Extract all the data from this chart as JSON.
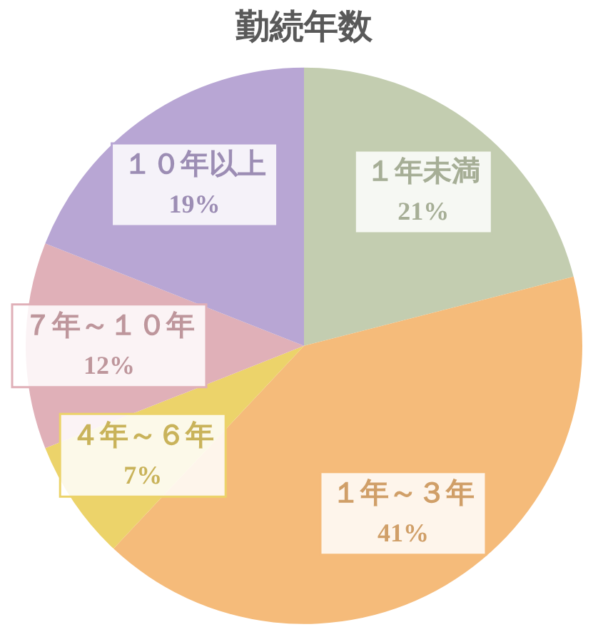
{
  "chart_data": {
    "type": "pie",
    "title": "勤続年数",
    "categories": [
      "１年未満",
      "１年～３年",
      "４年～６年",
      "７年～１０年",
      "１０年以上"
    ],
    "values": [
      21,
      41,
      7,
      12,
      19
    ],
    "value_labels": [
      "21%",
      "41%",
      "7%",
      "12%",
      "19%"
    ],
    "colors": [
      "#c3cdb0",
      "#f5bb7a",
      "#ecd36a",
      "#e0b0b8",
      "#b8a6d4"
    ],
    "legend": false
  }
}
